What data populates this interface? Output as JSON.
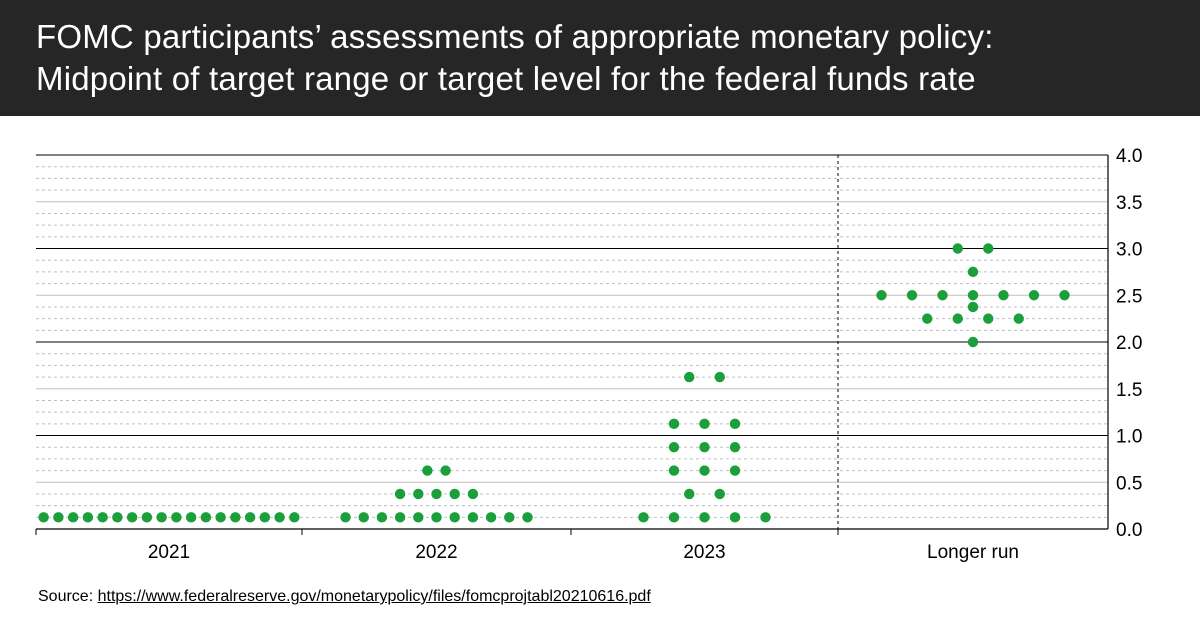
{
  "header": {
    "title_line1": "FOMC participants’ assessments of appropriate monetary policy:",
    "title_line2": "Midpoint of target range or target level for the federal funds rate"
  },
  "source": {
    "label": "Source: ",
    "link": "https://www.federalreserve.gov/monetarypolicy/files/fomcprojtabl20210616.pdf"
  },
  "colors": {
    "header_bg": "#262626",
    "dot": "#1a9f3a",
    "grid_major": "#000000",
    "grid_minor": "#bfbfbf"
  },
  "chart_data": {
    "type": "scatter",
    "categories": [
      "2021",
      "2022",
      "2023",
      "Longer run"
    ],
    "ylim": [
      0,
      4
    ],
    "yticks": [
      "0.0",
      "0.5",
      "1.0",
      "1.5",
      "2.0",
      "2.5",
      "3.0",
      "3.5",
      "4.0"
    ],
    "y_axis_position": "right",
    "grid": true,
    "series": [
      {
        "category": "2021",
        "points": [
          {
            "y": 0.125,
            "count": 18
          }
        ]
      },
      {
        "category": "2022",
        "points": [
          {
            "y": 0.125,
            "count": 11
          },
          {
            "y": 0.375,
            "count": 5
          },
          {
            "y": 0.625,
            "count": 2
          }
        ]
      },
      {
        "category": "2023",
        "points": [
          {
            "y": 0.125,
            "count": 5
          },
          {
            "y": 0.375,
            "count": 2
          },
          {
            "y": 0.625,
            "count": 3
          },
          {
            "y": 0.875,
            "count": 3
          },
          {
            "y": 1.125,
            "count": 3
          },
          {
            "y": 1.625,
            "count": 2
          }
        ]
      },
      {
        "category": "Longer run",
        "points": [
          {
            "y": 2.0,
            "count": 1
          },
          {
            "y": 2.25,
            "count": 4
          },
          {
            "y": 2.375,
            "count": 1
          },
          {
            "y": 2.5,
            "count": 7
          },
          {
            "y": 2.75,
            "count": 1
          },
          {
            "y": 3.0,
            "count": 2
          }
        ]
      }
    ]
  }
}
